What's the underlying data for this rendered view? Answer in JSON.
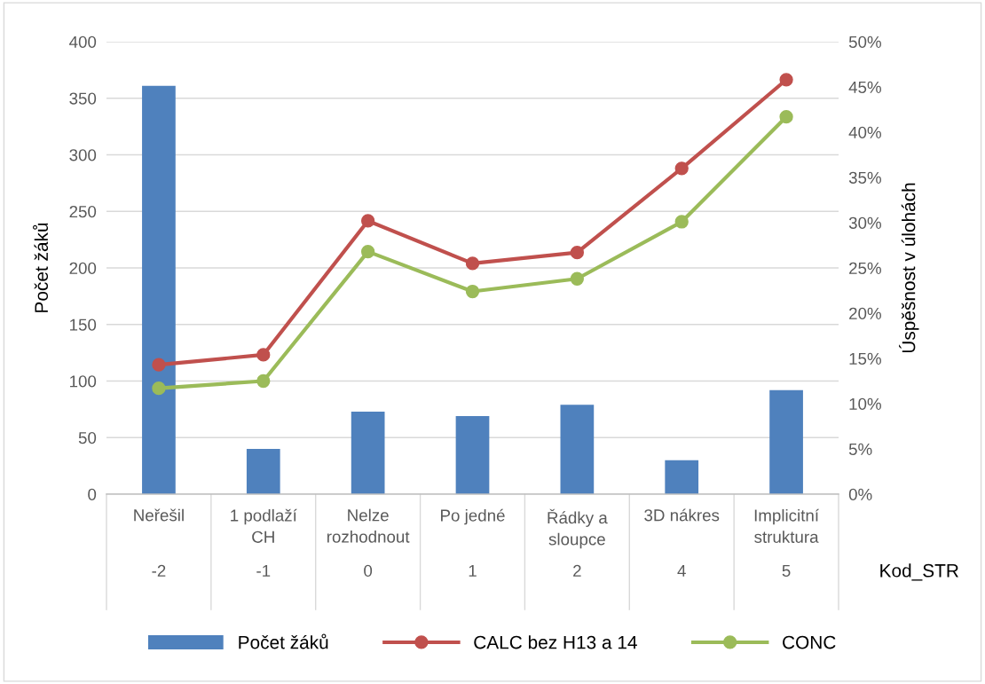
{
  "chart_data": {
    "type": "bar",
    "ylabel": "Počet žáků",
    "y2label": "Úspěšnost v úlohách",
    "xlabel": "Kod_STR",
    "categories": [
      "Neřešil",
      "1 podlaží\nCH",
      "Nelze\nrozhodnout",
      "Po jedné",
      "Řádky a\nsloupce",
      "3D nákres",
      "Implicitní\nstruktura"
    ],
    "series": [
      {
        "name": "Počet žáků",
        "color": "#4f81bd",
        "values": [
          361,
          40,
          73,
          69,
          79,
          30,
          92
        ]
      },
      {
        "name": "CALC bez H13 a 14",
        "type": "line",
        "axis": "y2",
        "color": "#c0504d",
        "marker": "circle",
        "values": [
          14.3,
          15.4,
          30.2,
          25.5,
          26.7,
          36.0,
          45.8
        ]
      },
      {
        "name": "CONC",
        "type": "line",
        "axis": "y2",
        "color": "#9bbb59",
        "marker": "circle",
        "values": [
          11.7,
          12.5,
          26.8,
          22.4,
          23.8,
          30.1,
          41.7
        ]
      }
    ],
    "ylim": [
      0,
      400
    ],
    "yticks": [
      0,
      50,
      100,
      150,
      200,
      250,
      300,
      350,
      400
    ],
    "y2lim": [
      0,
      50
    ],
    "y2ticks": [
      {
        "value": 0,
        "label": "0%"
      },
      {
        "value": 5,
        "label": "5%"
      },
      {
        "value": 10,
        "label": "10%"
      },
      {
        "value": 15,
        "label": "15%"
      },
      {
        "value": 20,
        "label": "20%"
      },
      {
        "value": 25,
        "label": "25%"
      },
      {
        "value": 30,
        "label": "30%"
      },
      {
        "value": 35,
        "label": "35%"
      },
      {
        "value": 40,
        "label": "40%"
      },
      {
        "value": 45,
        "label": "45%"
      },
      {
        "value": 50,
        "label": "50%"
      }
    ],
    "annotations": [
      "-2",
      "-1",
      "0",
      "1",
      "2",
      "4",
      "5"
    ],
    "grid": "y",
    "legend": "bottom"
  }
}
